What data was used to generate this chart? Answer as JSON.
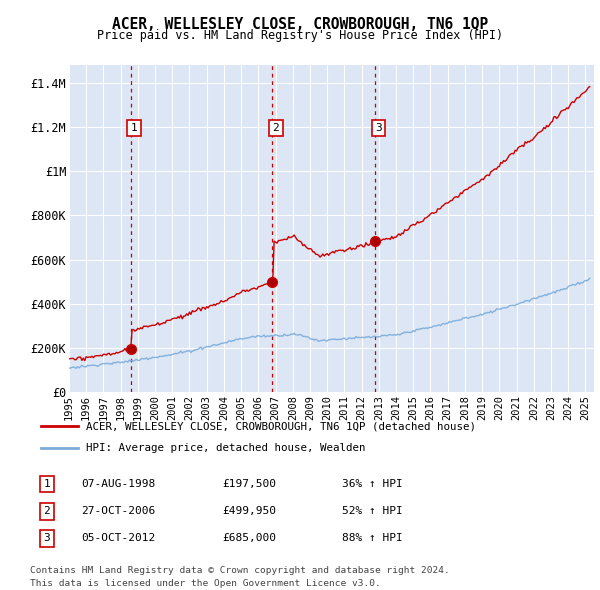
{
  "title": "ACER, WELLESLEY CLOSE, CROWBOROUGH, TN6 1QP",
  "subtitle": "Price paid vs. HM Land Registry's House Price Index (HPI)",
  "ylabel_ticks": [
    "£0",
    "£200K",
    "£400K",
    "£600K",
    "£800K",
    "£1M",
    "£1.2M",
    "£1.4M"
  ],
  "ytick_values": [
    0,
    200000,
    400000,
    600000,
    800000,
    1000000,
    1200000,
    1400000
  ],
  "ylim": [
    0,
    1480000
  ],
  "xlim_start": 1995.0,
  "xlim_end": 2025.5,
  "plot_bg_color": "#dce6f5",
  "grid_color": "#ffffff",
  "red_line_color": "#cc0000",
  "blue_line_color": "#7aacdc",
  "sale_points": [
    {
      "year": 1998.58,
      "price": 197500,
      "label": "1"
    },
    {
      "year": 2006.82,
      "price": 499950,
      "label": "2"
    },
    {
      "year": 2012.77,
      "price": 685000,
      "label": "3"
    }
  ],
  "vline_color": "#cc0000",
  "sale_dates": [
    "07-AUG-1998",
    "27-OCT-2006",
    "05-OCT-2012"
  ],
  "sale_prices": [
    "£197,500",
    "£499,950",
    "£685,000"
  ],
  "sale_pcts": [
    "36% ↑ HPI",
    "52% ↑ HPI",
    "88% ↑ HPI"
  ],
  "legend_label_red": "ACER, WELLESLEY CLOSE, CROWBOROUGH, TN6 1QP (detached house)",
  "legend_label_blue": "HPI: Average price, detached house, Wealden",
  "footer1": "Contains HM Land Registry data © Crown copyright and database right 2024.",
  "footer2": "This data is licensed under the Open Government Licence v3.0.",
  "xtick_years": [
    1995,
    1996,
    1997,
    1998,
    1999,
    2000,
    2001,
    2002,
    2003,
    2004,
    2005,
    2006,
    2007,
    2008,
    2009,
    2010,
    2011,
    2012,
    2013,
    2014,
    2015,
    2016,
    2017,
    2018,
    2019,
    2020,
    2021,
    2022,
    2023,
    2024,
    2025
  ]
}
